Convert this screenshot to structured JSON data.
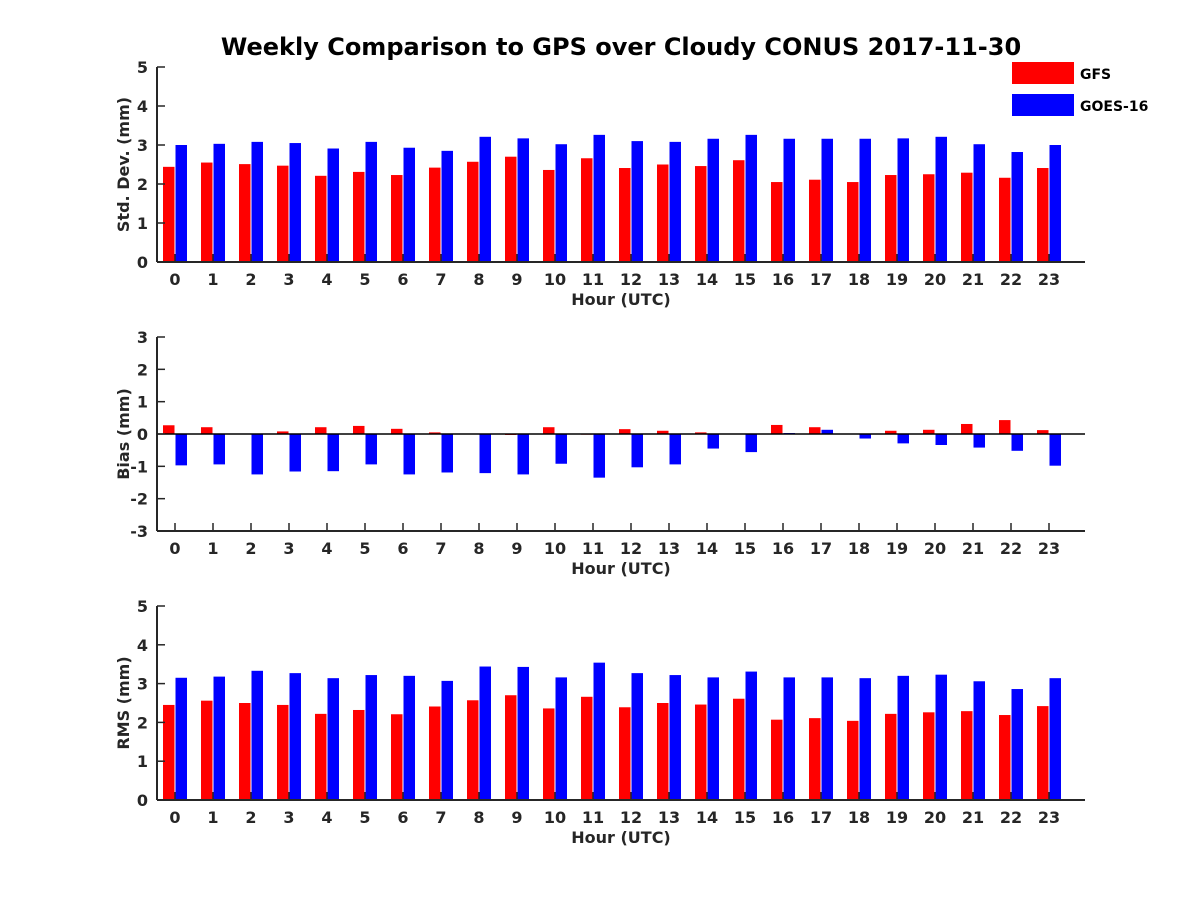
{
  "title": "Weekly Comparison to GPS over Cloudy CONUS 2017-11-30",
  "colors": {
    "GFS": "#ff0000",
    "GOES-16": "#0000ff",
    "axis": "#262626"
  },
  "legend": {
    "placement": "top-right",
    "entries": [
      "GFS",
      "GOES-16"
    ]
  },
  "chart_data": [
    {
      "type": "bar",
      "xlabel": "Hour (UTC)",
      "ylabel": "Std. Dev. (mm)",
      "ylim": [
        0,
        5
      ],
      "yticks": [
        0,
        1,
        2,
        3,
        4,
        5
      ],
      "categories": [
        "0",
        "1",
        "2",
        "3",
        "4",
        "5",
        "6",
        "7",
        "8",
        "9",
        "10",
        "11",
        "12",
        "13",
        "14",
        "15",
        "16",
        "17",
        "18",
        "19",
        "20",
        "21",
        "22",
        "23"
      ],
      "series": [
        {
          "name": "GFS",
          "values": [
            2.44,
            2.55,
            2.51,
            2.47,
            2.21,
            2.31,
            2.23,
            2.42,
            2.57,
            2.7,
            2.36,
            2.66,
            2.41,
            2.5,
            2.46,
            2.61,
            2.05,
            2.11,
            2.05,
            2.23,
            2.25,
            2.29,
            2.16,
            2.41
          ]
        },
        {
          "name": "GOES-16",
          "values": [
            3.0,
            3.03,
            3.08,
            3.05,
            2.91,
            3.08,
            2.93,
            2.85,
            3.21,
            3.17,
            3.02,
            3.26,
            3.1,
            3.08,
            3.16,
            3.26,
            3.16,
            3.16,
            3.16,
            3.17,
            3.21,
            3.02,
            2.82,
            3.0
          ]
        }
      ]
    },
    {
      "type": "bar",
      "xlabel": "Hour (UTC)",
      "ylabel": "Bias (mm)",
      "ylim": [
        -3,
        3
      ],
      "yticks": [
        -3,
        -2,
        -1,
        0,
        1,
        2,
        3
      ],
      "categories": [
        "0",
        "1",
        "2",
        "3",
        "4",
        "5",
        "6",
        "7",
        "8",
        "9",
        "10",
        "11",
        "12",
        "13",
        "14",
        "15",
        "16",
        "17",
        "18",
        "19",
        "20",
        "21",
        "22",
        "23"
      ],
      "series": [
        {
          "name": "GFS",
          "values": [
            0.27,
            0.21,
            0.0,
            0.08,
            0.21,
            0.25,
            0.16,
            0.05,
            0.0,
            -0.03,
            0.21,
            -0.02,
            0.15,
            0.1,
            0.05,
            0.0,
            0.28,
            0.21,
            0.0,
            0.1,
            0.13,
            0.31,
            0.43,
            0.12
          ]
        },
        {
          "name": "GOES-16",
          "values": [
            -0.97,
            -0.94,
            -1.25,
            -1.16,
            -1.15,
            -0.94,
            -1.25,
            -1.19,
            -1.21,
            -1.25,
            -0.92,
            -1.35,
            -1.03,
            -0.94,
            -0.45,
            -0.56,
            0.03,
            0.13,
            -0.14,
            -0.29,
            -0.34,
            -0.42,
            -0.52,
            -0.98
          ]
        }
      ]
    },
    {
      "type": "bar",
      "xlabel": "Hour (UTC)",
      "ylabel": "RMS (mm)",
      "ylim": [
        0,
        5
      ],
      "yticks": [
        0,
        1,
        2,
        3,
        4,
        5
      ],
      "categories": [
        "0",
        "1",
        "2",
        "3",
        "4",
        "5",
        "6",
        "7",
        "8",
        "9",
        "10",
        "11",
        "12",
        "13",
        "14",
        "15",
        "16",
        "17",
        "18",
        "19",
        "20",
        "21",
        "22",
        "23"
      ],
      "series": [
        {
          "name": "GFS",
          "values": [
            2.45,
            2.56,
            2.5,
            2.45,
            2.22,
            2.32,
            2.21,
            2.41,
            2.57,
            2.7,
            2.36,
            2.66,
            2.39,
            2.5,
            2.46,
            2.61,
            2.07,
            2.11,
            2.04,
            2.22,
            2.26,
            2.29,
            2.19,
            2.42
          ]
        },
        {
          "name": "GOES-16",
          "values": [
            3.15,
            3.18,
            3.33,
            3.27,
            3.14,
            3.22,
            3.2,
            3.07,
            3.44,
            3.43,
            3.16,
            3.54,
            3.27,
            3.22,
            3.16,
            3.31,
            3.16,
            3.16,
            3.14,
            3.2,
            3.23,
            3.06,
            2.86,
            3.14
          ]
        }
      ]
    }
  ]
}
